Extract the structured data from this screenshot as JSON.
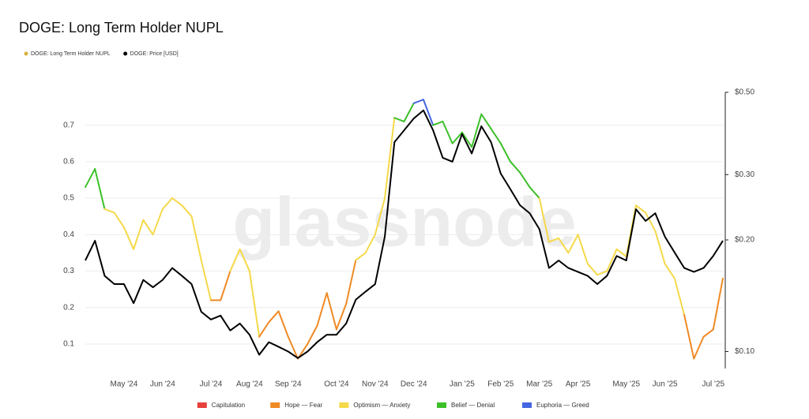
{
  "chart_data": {
    "type": "line",
    "title": "DOGE: Long Term Holder NUPL",
    "watermark": "glassnode",
    "categories": [
      null,
      null,
      null,
      null,
      "May '24",
      null,
      null,
      null,
      "Jun '24",
      null,
      null,
      null,
      null,
      "Jul '24",
      null,
      null,
      null,
      "Aug '24",
      null,
      null,
      null,
      "Sep '24",
      null,
      null,
      null,
      null,
      "Oct '24",
      null,
      null,
      null,
      "Nov '24",
      null,
      null,
      null,
      "Dec '24",
      null,
      null,
      null,
      null,
      "Jan '25",
      null,
      null,
      null,
      "Feb '25",
      null,
      null,
      null,
      "Mar '25",
      null,
      null,
      null,
      "Apr '25",
      null,
      null,
      null,
      null,
      "May '25",
      null,
      null,
      null,
      "Jun '25",
      null,
      null,
      null,
      null,
      "Jul '25",
      null
    ],
    "series": [
      {
        "name": "DOGE: Long Term Holder NUPL",
        "color": "#d4b13c",
        "values": [
          0.53,
          0.58,
          0.47,
          0.46,
          0.42,
          0.36,
          0.44,
          0.4,
          0.47,
          0.5,
          0.48,
          0.45,
          0.33,
          0.22,
          0.22,
          0.3,
          0.36,
          0.3,
          0.12,
          0.16,
          0.19,
          0.12,
          0.06,
          0.1,
          0.15,
          0.24,
          0.14,
          0.21,
          0.33,
          0.35,
          0.4,
          0.5,
          0.72,
          0.71,
          0.76,
          0.77,
          0.7,
          0.71,
          0.65,
          0.68,
          0.64,
          0.73,
          0.69,
          0.65,
          0.6,
          0.57,
          0.53,
          0.5,
          0.38,
          0.39,
          0.35,
          0.4,
          0.32,
          0.29,
          0.3,
          0.36,
          0.34,
          0.48,
          0.46,
          0.41,
          0.32,
          0.28,
          0.18,
          0.06,
          0.12,
          0.14,
          0.28
        ],
        "colors": [
          "#3dbf2a",
          "#3dbf2a",
          "#f5d94a",
          "#f5d94a",
          "#f5d94a",
          "#f5d94a",
          "#f5d94a",
          "#f5d94a",
          "#f5d94a",
          "#f5d94a",
          "#f5d94a",
          "#f5d94a",
          "#f5d94a",
          "#f08a24",
          "#f08a24",
          "#f5d94a",
          "#f5d94a",
          "#f5d94a",
          "#f08a24",
          "#f08a24",
          "#f08a24",
          "#f08a24",
          "#f08a24",
          "#f08a24",
          "#f08a24",
          "#f08a24",
          "#f08a24",
          "#f08a24",
          "#f5d94a",
          "#f5d94a",
          "#f5d94a",
          "#f5d94a",
          "#3dbf2a",
          "#3dbf2a",
          "#4466e0",
          "#4466e0",
          "#3dbf2a",
          "#3dbf2a",
          "#3dbf2a",
          "#3dbf2a",
          "#3dbf2a",
          "#3dbf2a",
          "#3dbf2a",
          "#3dbf2a",
          "#3dbf2a",
          "#3dbf2a",
          "#3dbf2a",
          "#f5d94a",
          "#f5d94a",
          "#f5d94a",
          "#f5d94a",
          "#f5d94a",
          "#f5d94a",
          "#f5d94a",
          "#f5d94a",
          "#f5d94a",
          "#f5d94a",
          "#f5d94a",
          "#f5d94a",
          "#f5d94a",
          "#f5d94a",
          "#f5d94a",
          "#f08a24",
          "#f08a24",
          "#f08a24",
          "#f08a24",
          "#f5d94a"
        ]
      },
      {
        "name": "DOGE: Price [USD]",
        "color": "#000000",
        "axis": "y2",
        "values": [
          0.176,
          0.199,
          0.16,
          0.152,
          0.152,
          0.135,
          0.156,
          0.149,
          0.156,
          0.168,
          0.16,
          0.152,
          0.128,
          0.122,
          0.125,
          0.114,
          0.119,
          0.111,
          0.098,
          0.106,
          0.103,
          0.1,
          0.096,
          0.1,
          0.106,
          0.111,
          0.111,
          0.119,
          0.138,
          0.145,
          0.152,
          0.204,
          0.367,
          0.395,
          0.425,
          0.447,
          0.395,
          0.333,
          0.325,
          0.386,
          0.342,
          0.405,
          0.367,
          0.302,
          0.274,
          0.248,
          0.236,
          0.214,
          0.168,
          0.176,
          0.168,
          0.164,
          0.16,
          0.152,
          0.16,
          0.181,
          0.176,
          0.242,
          0.225,
          0.236,
          0.204,
          0.185,
          0.168,
          0.164,
          0.168,
          0.181,
          0.199
        ]
      }
    ],
    "ylim": [
      0.033,
      0.79
    ],
    "yticks": [
      0.1,
      0.2,
      0.3,
      0.4,
      0.5,
      0.6,
      0.7
    ],
    "y2lim": [
      0.09,
      0.5
    ],
    "y2ticks": [
      {
        "value": 0.1,
        "label": "$0.10"
      },
      {
        "value": 0.2,
        "label": "$0.20"
      },
      {
        "value": 0.3,
        "label": "$0.30"
      },
      {
        "value": 0.5,
        "label": "$0.50"
      }
    ],
    "y2_log": true,
    "grid": true,
    "zones": [
      {
        "name": "Capitulation",
        "color": "#e8413c"
      },
      {
        "name": "Hope — Fear",
        "color": "#f08a24"
      },
      {
        "name": "Optimism — Anxiety",
        "color": "#f5d94a"
      },
      {
        "name": "Belief — Denial",
        "color": "#3dbf2a"
      },
      {
        "name": "Euphoria — Greed",
        "color": "#4466e0"
      }
    ]
  }
}
